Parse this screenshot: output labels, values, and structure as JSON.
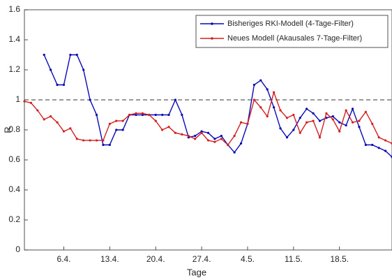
{
  "chart_data": {
    "type": "line",
    "x_label": "Tage",
    "y_label": "R",
    "categories": [
      null,
      null,
      null,
      null,
      null,
      null,
      "6.4.",
      null,
      null,
      null,
      null,
      null,
      null,
      "13.4.",
      null,
      null,
      null,
      null,
      null,
      null,
      "20.4.",
      null,
      null,
      null,
      null,
      null,
      null,
      "27.4.",
      null,
      null,
      null,
      null,
      null,
      null,
      "4.5.",
      null,
      null,
      null,
      null,
      null,
      null,
      "11.5.",
      null,
      null,
      null,
      null,
      null,
      null,
      "18.5.",
      null,
      null,
      null,
      null,
      null,
      null,
      null,
      null
    ],
    "series": [
      {
        "name": "Bisheriges RKI-Modell (4-Tage-Filter)",
        "color": "#0a0ab4",
        "values": [
          null,
          null,
          null,
          1.3,
          1.2,
          1.1,
          1.1,
          1.3,
          1.3,
          1.2,
          1.0,
          0.9,
          0.7,
          0.7,
          0.8,
          0.8,
          0.9,
          0.9,
          0.9,
          0.9,
          0.9,
          0.9,
          0.9,
          1.0,
          0.9,
          0.75,
          0.76,
          0.79,
          0.78,
          0.74,
          0.76,
          0.7,
          0.65,
          0.71,
          0.84,
          1.1,
          1.13,
          1.07,
          0.95,
          0.81,
          0.75,
          0.8,
          0.88,
          0.94,
          0.91,
          0.86,
          0.88,
          0.89,
          0.85,
          0.83,
          0.94,
          0.82,
          0.7,
          0.7,
          0.68,
          0.66,
          0.62
        ]
      },
      {
        "name": "Neues Modell (Akausales 7-Tage-Filter)",
        "color": "#d42020",
        "values": [
          0.99,
          0.98,
          0.93,
          0.87,
          0.89,
          0.85,
          0.79,
          0.81,
          0.74,
          0.73,
          0.73,
          0.73,
          0.73,
          0.84,
          0.86,
          0.86,
          0.9,
          0.91,
          0.91,
          0.9,
          0.86,
          0.8,
          0.82,
          0.78,
          0.77,
          0.76,
          0.74,
          0.78,
          0.73,
          0.72,
          0.74,
          0.7,
          0.76,
          0.85,
          0.84,
          1.0,
          0.95,
          0.89,
          1.05,
          0.93,
          0.88,
          0.9,
          0.78,
          0.85,
          0.86,
          0.75,
          0.91,
          0.87,
          0.79,
          0.93,
          0.85,
          0.86,
          0.92,
          0.84,
          0.75,
          0.73,
          0.71
        ]
      }
    ],
    "reference_line": 1,
    "ylim": [
      0,
      1.6
    ],
    "yticks": [
      0,
      0.2,
      0.4,
      0.6,
      0.8,
      1,
      1.2,
      1.4,
      1.6
    ],
    "grid": false,
    "legend": "upper right"
  }
}
